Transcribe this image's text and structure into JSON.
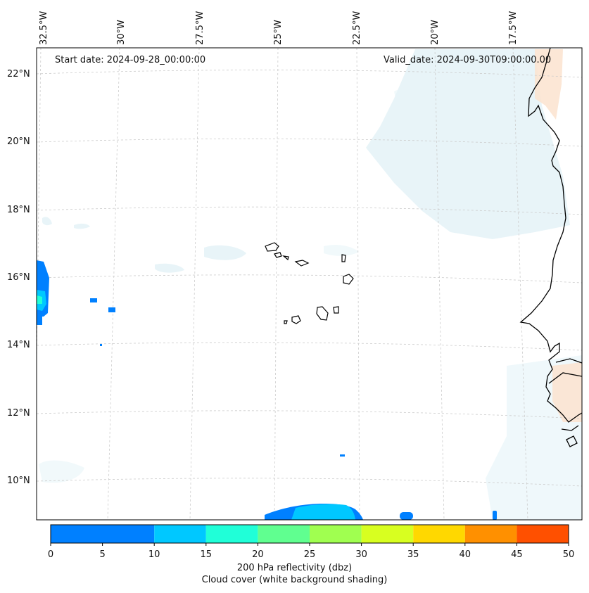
{
  "map": {
    "start_date": "Start date: 2024-09-28_00:00:00",
    "valid_date": "Valid_date: 2024-09-30T09:00:00.00",
    "lon_labels": [
      "32.5°W",
      "30°W",
      "27.5°W",
      "25°W",
      "22.5°W",
      "20°W",
      "17.5°W"
    ],
    "lat_labels": [
      "22°N",
      "20°N",
      "18°N",
      "16°N",
      "14°N",
      "12°N",
      "10°N"
    ],
    "gridlines": true
  },
  "colorbar": {
    "ticks": [
      "0",
      "5",
      "10",
      "15",
      "20",
      "25",
      "30",
      "35",
      "40",
      "45",
      "50"
    ],
    "colors": [
      "#0080ff",
      "#00c8ff",
      "#20ffd8",
      "#60ff90",
      "#a0ff50",
      "#d8ff20",
      "#ffd800",
      "#ff9000",
      "#ff5000"
    ],
    "label_line1": "200 hPa reflectivity (dbz)",
    "label_line2": "Cloud cover (white background shading)"
  }
}
